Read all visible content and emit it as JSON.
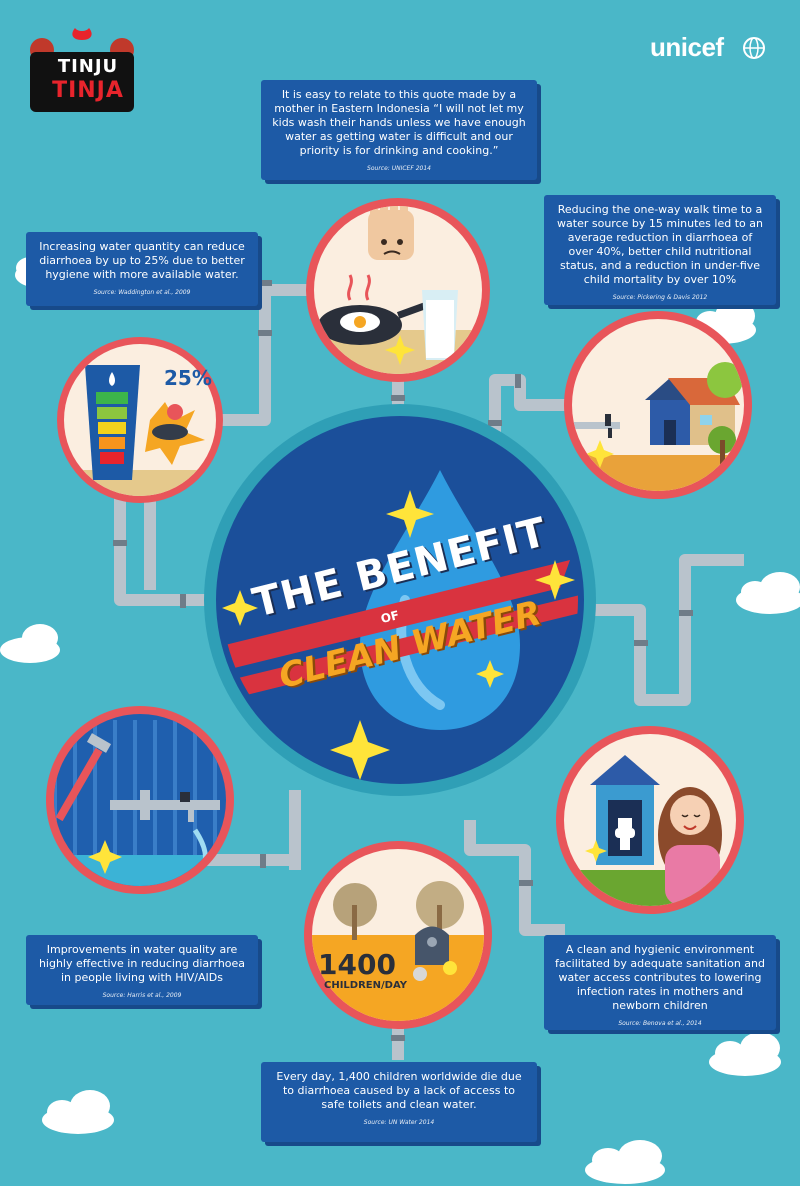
{
  "logos": {
    "left_line1": "TINJU",
    "left_line2": "TINJA",
    "right": "unicef"
  },
  "title": {
    "line1": "THE BENEFIT",
    "line2": "OF",
    "line3": "CLEAN WATER"
  },
  "facts": [
    {
      "text": "It is easy to relate to this quote made by a mother in Eastern Indonesia “I will not let my kids wash their hands unless we have enough water as getting water is difficult and our priority is for drinking and cooking.”",
      "source": "Source: UNICEF 2014"
    },
    {
      "text": "Increasing water quantity can reduce diarrhoea by up to 25% due to better hygiene with more available water.",
      "source": "Source: Waddington et al., 2009"
    },
    {
      "text": "Reducing the one-way walk time to a water source by 15 minutes led to an average reduction in diarrhoea of over 40%, better child nutritional status, and a reduction in under-five child mortality by over 10%",
      "source": "Source: Pickering & Davis 2012"
    },
    {
      "text": "Improvements in water quality are highly effective in reducing diarrhoea in people living with HIV/AIDs",
      "source": "Source: Harris et al., 2009"
    },
    {
      "text": "A clean and hygienic environment facilitated by adequate sanitation and water access contributes to lowering infection rates in mothers and newborn children",
      "source": "Source: Benova et al., 2014"
    },
    {
      "text": "Every day, 1,400 children worldwide die due to diarrhoea caused by a lack of access to safe toilets and clean water.",
      "source": "Source: UN Water 2014"
    }
  ],
  "illustrations": {
    "percent_label": "25%",
    "children_count": "1400",
    "children_unit": "CHILDREN/DAY"
  },
  "colors": {
    "background": "#4ab7c8",
    "box": "#1d5aa6",
    "ring": "#e8555a",
    "center_circle": "#1b4f9a",
    "pipe": "#b9c3cc",
    "title_orange": "#f5a623",
    "sparkle": "#ffe43a"
  },
  "icons": [
    "drop-icon",
    "sparkle-icon",
    "house-icon",
    "tap-icon",
    "wrench-icon",
    "toilet-icon",
    "gravestone-icon",
    "hand-icon",
    "frying-pan-icon",
    "glass-of-water-icon",
    "globe-icon"
  ]
}
